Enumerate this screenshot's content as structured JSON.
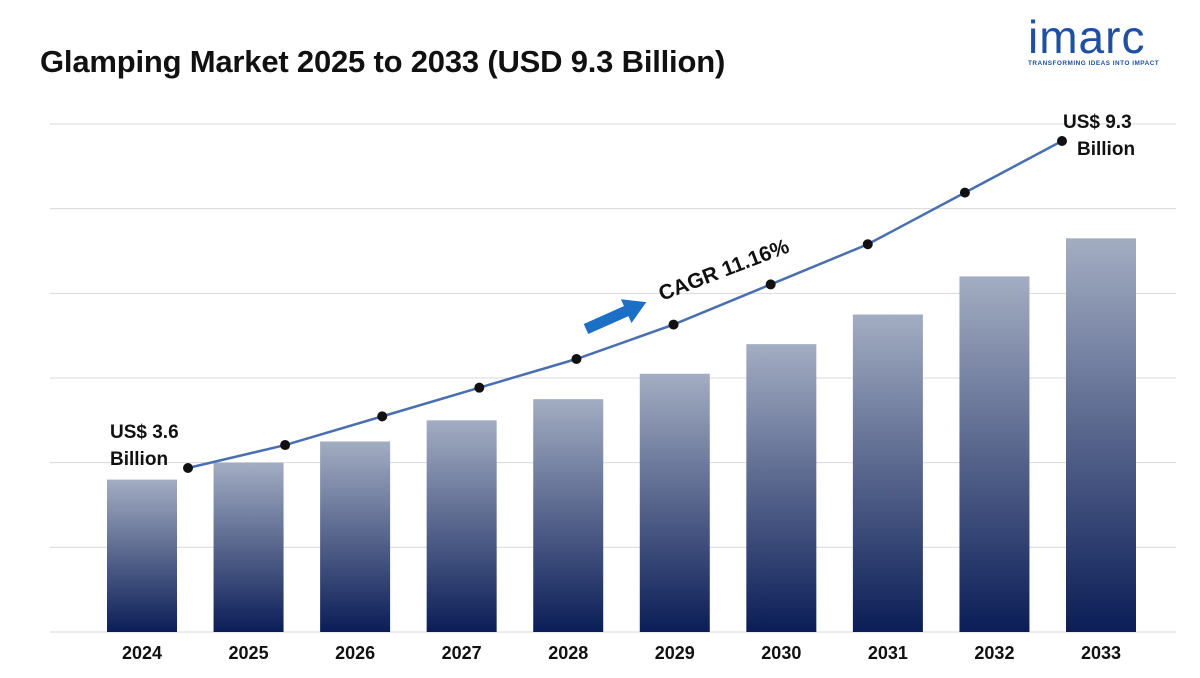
{
  "header": {
    "title": "Glamping Market 2025 to 2033 (USD 9.3 Billion)"
  },
  "logo": {
    "wordmark": "imarc",
    "tagline": "TRANSFORMING IDEAS INTO IMPACT",
    "color": "#1f4fa3"
  },
  "chart_data": {
    "type": "bar",
    "categories": [
      "2024",
      "2025",
      "2026",
      "2027",
      "2028",
      "2029",
      "2030",
      "2031",
      "2032",
      "2033"
    ],
    "values": [
      3.6,
      4.0,
      4.5,
      5.0,
      5.5,
      6.1,
      6.8,
      7.5,
      8.4,
      9.3
    ],
    "ylim": [
      0,
      12
    ],
    "grid": true,
    "trend_line": {
      "values": [
        3.6,
        4.0,
        4.5,
        5.0,
        5.5,
        6.1,
        6.8,
        7.5,
        8.4,
        9.3
      ],
      "color": "#4a6fb0"
    },
    "bar_gradient": {
      "top": "#a3adc2",
      "bottom": "#0b1d57"
    },
    "annotations": {
      "start_line1": "US$ 3.6",
      "start_line2": "Billion",
      "end_line1": "US$ 9.3",
      "end_line2": "Billion",
      "cagr": "CAGR 11.16%"
    },
    "arrow_color": "#1b6fc4"
  }
}
